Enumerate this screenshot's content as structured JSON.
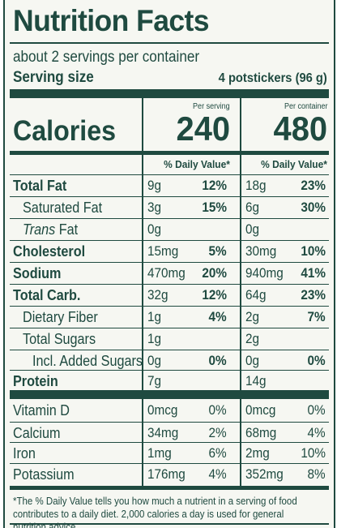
{
  "title": "Nutrition Facts",
  "servings_per_container": "about 2 servings per container",
  "serving_size_label": "Serving size",
  "serving_size_value": "4 potstickers (96 g)",
  "calories_label": "Calories",
  "per_serving_label": "Per serving",
  "per_container_label": "Per container",
  "calories_per_serving": "240",
  "calories_per_container": "480",
  "dv_header_serving": "% Daily Value*",
  "dv_header_container": "% Daily Value*",
  "nutrients": [
    {
      "name": "Total Fat",
      "serving_amount": "9g",
      "serving_dv": "12%",
      "container_amount": "18g",
      "container_dv": "23%"
    },
    {
      "name": "Saturated Fat",
      "serving_amount": "3g",
      "serving_dv": "15%",
      "container_amount": "6g",
      "container_dv": "30%"
    },
    {
      "name_italic": "Trans",
      "name_rest": " Fat",
      "serving_amount": "0g",
      "serving_dv": "",
      "container_amount": "0g",
      "container_dv": ""
    },
    {
      "name": "Cholesterol",
      "serving_amount": "15mg",
      "serving_dv": "5%",
      "container_amount": "30mg",
      "container_dv": "10%"
    },
    {
      "name": "Sodium",
      "serving_amount": "470mg",
      "serving_dv": "20%",
      "container_amount": "940mg",
      "container_dv": "41%"
    },
    {
      "name": "Total Carb.",
      "serving_amount": "32g",
      "serving_dv": "12%",
      "container_amount": "64g",
      "container_dv": "23%"
    },
    {
      "name": "Dietary Fiber",
      "serving_amount": "1g",
      "serving_dv": "4%",
      "container_amount": "2g",
      "container_dv": "7%"
    },
    {
      "name": "Total Sugars",
      "serving_amount": "1g",
      "serving_dv": "",
      "container_amount": "2g",
      "container_dv": ""
    },
    {
      "name": "Incl. Added Sugars",
      "serving_amount": "0g",
      "serving_dv": "0%",
      "container_amount": "0g",
      "container_dv": "0%"
    },
    {
      "name": "Protein",
      "serving_amount": "7g",
      "serving_dv": "",
      "container_amount": "14g",
      "container_dv": ""
    }
  ],
  "micronutrients": [
    {
      "name": "Vitamin D",
      "serving_amount": "0mcg",
      "serving_dv": "0%",
      "container_amount": "0mcg",
      "container_dv": "0%"
    },
    {
      "name": "Calcium",
      "serving_amount": "34mg",
      "serving_dv": "2%",
      "container_amount": "68mg",
      "container_dv": "4%"
    },
    {
      "name": "Iron",
      "serving_amount": "1mg",
      "serving_dv": "6%",
      "container_amount": "2mg",
      "container_dv": "10%"
    },
    {
      "name": "Potassium",
      "serving_amount": "176mg",
      "serving_dv": "4%",
      "container_amount": "352mg",
      "container_dv": "8%"
    }
  ],
  "footnote": "*The % Daily Value tells you how much a nutrient in a serving of food contributes to a daily diet. 2,000 calories a day is used for general nutrition advice.",
  "colors": {
    "ink": "#1f4a40",
    "background": "#f6f7f2"
  }
}
